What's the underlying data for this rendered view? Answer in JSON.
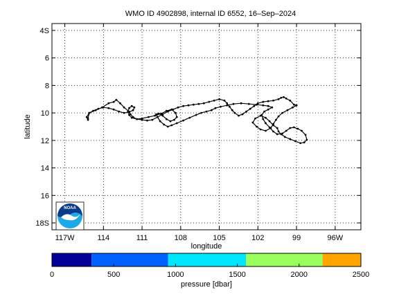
{
  "chart_data": [
    {
      "type": "line",
      "title": "WMO ID 4902898, internal ID 6552, 16–Sep–2024",
      "xlabel": "longitude",
      "ylabel": "latitude",
      "xlim": [
        -118,
        -94
      ],
      "ylim": [
        18.5,
        3.5
      ],
      "y_reversed": true,
      "grid": true,
      "grid_style": "dotted",
      "x_ticks": [
        -117,
        -114,
        -111,
        -108,
        -105,
        -102,
        -99,
        -96
      ],
      "x_tick_labels": [
        "117W",
        "114",
        "111",
        "108",
        "105",
        "102",
        "99",
        "96W"
      ],
      "y_ticks": [
        4,
        6,
        8,
        10,
        12,
        14,
        16,
        18
      ],
      "y_tick_labels": [
        "4S",
        "6",
        "8",
        "10",
        "12",
        "14",
        "16",
        "18S"
      ],
      "series": [
        {
          "color": "#000000",
          "marker": "dot",
          "x": [
            -115.2,
            -115.1,
            -114.6,
            -114.1,
            -113.6,
            -113.2,
            -113.0,
            -112.7,
            -112.4,
            -112.0,
            -111.9,
            -111.7,
            -111.4,
            -111.0,
            -110.6,
            -110.2,
            -109.8,
            -109.4,
            -109.0,
            -108.6,
            -108.2,
            -107.8,
            -107.4,
            -107.0,
            -106.6,
            -106.2,
            -105.8,
            -105.4,
            -105.0,
            -104.6,
            -104.4,
            -104.2,
            -104.0,
            -103.8,
            -103.5,
            -103.2,
            -102.9,
            -102.6,
            -102.3,
            -102.0,
            -101.6,
            -101.2,
            -100.8,
            -100.4,
            -100.2,
            -100.0,
            -99.8,
            -99.5,
            -99.2,
            -99.0,
            -99.3,
            -99.7,
            -100.1,
            -100.4,
            -100.6,
            -100.8,
            -101.0,
            -101.4,
            -101.8,
            -102.1,
            -102.4,
            -102.2,
            -101.8,
            -101.4,
            -101.1,
            -100.8,
            -100.5,
            -100.4,
            -100.2,
            -99.9,
            -99.5,
            -99.1,
            -98.7,
            -98.4,
            -98.2,
            -98.3,
            -98.6,
            -98.9,
            -99.2,
            -99.5,
            -99.8,
            -100.1,
            -100.5,
            -100.8,
            -101.1,
            -101.4,
            -101.6,
            -101.7,
            -101.5,
            -101.2,
            -100.9,
            -101.2,
            -101.6,
            -102.1,
            -102.7,
            -103.3,
            -103.9,
            -104.4,
            -104.9,
            -105.3,
            -105.6,
            -106.0,
            -106.4,
            -106.8,
            -107.3,
            -107.8,
            -108.3,
            -108.7,
            -109.0,
            -109.3,
            -109.6,
            -109.8,
            -109.9,
            -109.7,
            -109.4,
            -109.1,
            -108.8,
            -108.5,
            -108.3,
            -108.4,
            -108.7,
            -109.1,
            -109.5,
            -110.0,
            -110.5,
            -111.0,
            -111.4,
            -111.8,
            -112.0,
            -112.1,
            -112.0,
            -111.8,
            -111.6,
            -111.7,
            -112.0,
            -112.4,
            -112.8,
            -113.2,
            -113.6,
            -114.0,
            -114.4,
            -114.8,
            -115.1,
            -115.3,
            -115.2
          ],
          "y": [
            10.4,
            10.0,
            9.8,
            9.6,
            9.3,
            9.2,
            9.05,
            9.3,
            9.6,
            9.9,
            10.1,
            10.3,
            10.45,
            10.5,
            10.55,
            10.5,
            10.3,
            10.1,
            9.9,
            9.75,
            9.6,
            9.5,
            9.45,
            9.4,
            9.35,
            9.3,
            9.2,
            9.1,
            9.0,
            9.1,
            9.3,
            9.55,
            9.8,
            10.0,
            10.2,
            10.1,
            9.9,
            9.7,
            9.5,
            9.3,
            9.2,
            9.15,
            9.1,
            9.0,
            8.9,
            8.85,
            8.95,
            9.1,
            9.4,
            9.45,
            9.6,
            9.8,
            10.0,
            10.25,
            10.5,
            10.8,
            11.1,
            11.3,
            11.2,
            11.0,
            10.7,
            10.4,
            10.2,
            10.35,
            10.6,
            10.9,
            11.1,
            11.35,
            11.55,
            11.75,
            11.9,
            12.05,
            12.2,
            12.15,
            11.95,
            11.6,
            11.3,
            11.15,
            11.05,
            11.1,
            11.3,
            11.5,
            11.55,
            11.35,
            11.05,
            10.75,
            10.45,
            10.15,
            9.9,
            9.75,
            9.6,
            9.5,
            9.45,
            9.4,
            9.35,
            9.3,
            9.35,
            9.45,
            9.55,
            9.65,
            9.8,
            9.9,
            10.0,
            10.15,
            10.35,
            10.55,
            10.75,
            10.9,
            11.0,
            10.85,
            10.6,
            10.3,
            10.1,
            10.05,
            10.2,
            10.45,
            10.6,
            10.5,
            10.3,
            10.0,
            9.75,
            9.85,
            10.05,
            10.2,
            10.3,
            10.4,
            10.45,
            10.35,
            10.15,
            9.9,
            9.65,
            9.5,
            9.6,
            9.8,
            9.95,
            10.0,
            9.9,
            9.75,
            9.65,
            9.6,
            9.7,
            9.85,
            10.0,
            10.3,
            10.5
          ]
        }
      ]
    },
    {
      "type": "colorbar",
      "xlabel": "pressure [dbar]",
      "range": [
        0,
        2500
      ],
      "ticks": [
        0,
        500,
        1000,
        1500,
        2000,
        2500
      ],
      "tick_labels": [
        "0",
        "500",
        "1000",
        "1500",
        "2000",
        "2500"
      ],
      "bands": [
        {
          "from": 0,
          "to": 320,
          "color": "#000094"
        },
        {
          "from": 320,
          "to": 940,
          "color": "#0061ff"
        },
        {
          "from": 940,
          "to": 1570,
          "color": "#00e6ff"
        },
        {
          "from": 1570,
          "to": 2190,
          "color": "#99ff5c"
        },
        {
          "from": 2190,
          "to": 2500,
          "color": "#ffa500"
        }
      ]
    }
  ],
  "logo": {
    "text": "NOAA",
    "icon": "noaa-logo-icon",
    "colors": {
      "sky": "#0a3a8c",
      "sea": "#1ea8e8",
      "bird": "#ffffff"
    }
  }
}
